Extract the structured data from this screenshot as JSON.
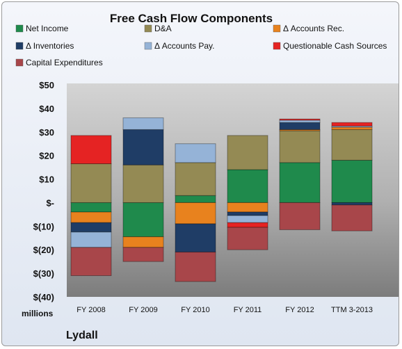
{
  "chart_data": {
    "type": "bar",
    "stacked": true,
    "title": "Free Cash Flow Components",
    "categories": [
      "FY 2008",
      "FY 2009",
      "FY 2010",
      "FY 2011",
      "FY 2012",
      "TTM 3-2013"
    ],
    "y_ticks": [
      "$50",
      "$40",
      "$30",
      "$20",
      "$10",
      "$-",
      "$(10)",
      "$(20)",
      "$(30)",
      "$(40)"
    ],
    "ylim": [
      -40,
      50
    ],
    "ylabel": "millions",
    "footer": "Lydall",
    "legend_position": "top",
    "grid": false,
    "series": [
      {
        "name": "Net Income",
        "color": "#1f8a4c",
        "values": [
          -4,
          -14.5,
          3,
          14,
          17,
          18
        ]
      },
      {
        "name": "D&A",
        "color": "#948a54",
        "values": [
          16.5,
          16,
          14,
          14.5,
          13.5,
          13
        ]
      },
      {
        "name": "Δ Accounts Rec.",
        "color": "#e8821e",
        "values": [
          -4.5,
          -4.5,
          -9,
          -4,
          0.5,
          1
        ]
      },
      {
        "name": "Δ Inventories",
        "color": "#1f3d66",
        "values": [
          -4,
          15,
          -12,
          -1.5,
          3,
          -1
        ]
      },
      {
        "name": "Δ Accounts Pay.",
        "color": "#95b3d7",
        "values": [
          -6.5,
          5,
          8,
          -3,
          1,
          0.5
        ]
      },
      {
        "name": "Questionable Cash Sources",
        "color": "#e52323",
        "values": [
          12,
          0,
          0,
          -2,
          0.5,
          1.5
        ]
      },
      {
        "name": "Capital Expenditures",
        "color": "#a8464a",
        "values": [
          -12,
          -6,
          -12.5,
          -9.5,
          -11.5,
          -11
        ]
      }
    ]
  }
}
